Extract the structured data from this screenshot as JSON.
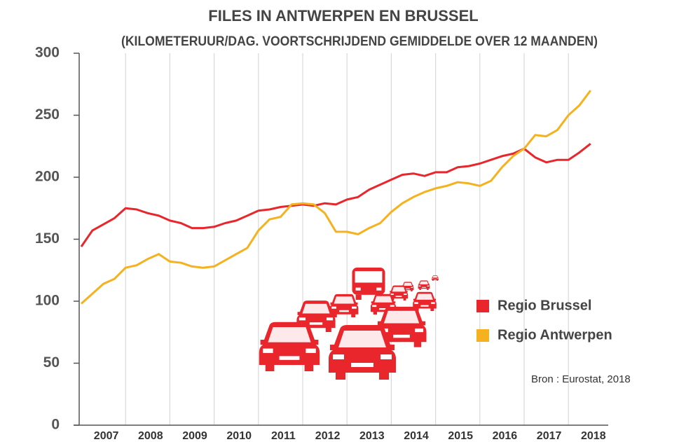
{
  "chart_data": {
    "type": "line",
    "title": "FILES IN ANTWERPEN EN BRUSSEL",
    "subtitle": "(KILOMETERUUR/DAG. VOORTSCHRIJDEND GEMIDDELDE OVER 12 MAANDEN)",
    "source": "Bron : Eurostat, 2018",
    "categories": [
      null,
      null,
      "2007",
      null,
      null,
      null,
      "2008",
      null,
      null,
      null,
      "2009",
      null,
      null,
      null,
      "2010",
      null,
      null,
      null,
      "2011",
      null,
      null,
      null,
      "2012",
      null,
      null,
      null,
      "2013",
      null,
      null,
      null,
      "2014",
      null,
      null,
      null,
      "2015",
      null,
      null,
      null,
      "2016",
      null,
      null,
      null,
      "2017",
      null,
      null,
      null,
      "2018"
    ],
    "series": [
      {
        "name": "Regio Brussel",
        "color": "#e8262b",
        "values": [
          144,
          157,
          162,
          167,
          175,
          174,
          171,
          169,
          165,
          163,
          159,
          159,
          160,
          163,
          165,
          169,
          173,
          174,
          176,
          177,
          178,
          177,
          179,
          178,
          182,
          184,
          190,
          194,
          198,
          202,
          203,
          201,
          204,
          204,
          208,
          209,
          211,
          214,
          217,
          219,
          223,
          216,
          212,
          214,
          214,
          220,
          227
        ]
      },
      {
        "name": "Regio Antwerpen",
        "color": "#f5b21e",
        "values": [
          98,
          106,
          114,
          118,
          127,
          129,
          134,
          138,
          132,
          131,
          128,
          127,
          128,
          133,
          138,
          143,
          157,
          166,
          168,
          178,
          179,
          178,
          171,
          156,
          156,
          154,
          159,
          163,
          172,
          179,
          184,
          188,
          191,
          193,
          196,
          195,
          193,
          197,
          208,
          217,
          223,
          234,
          233,
          238,
          250,
          258,
          270
        ]
      }
    ],
    "ylim": [
      0,
      300
    ],
    "yticks": [
      0,
      50,
      100,
      150,
      200,
      250,
      300
    ],
    "grid": true
  }
}
